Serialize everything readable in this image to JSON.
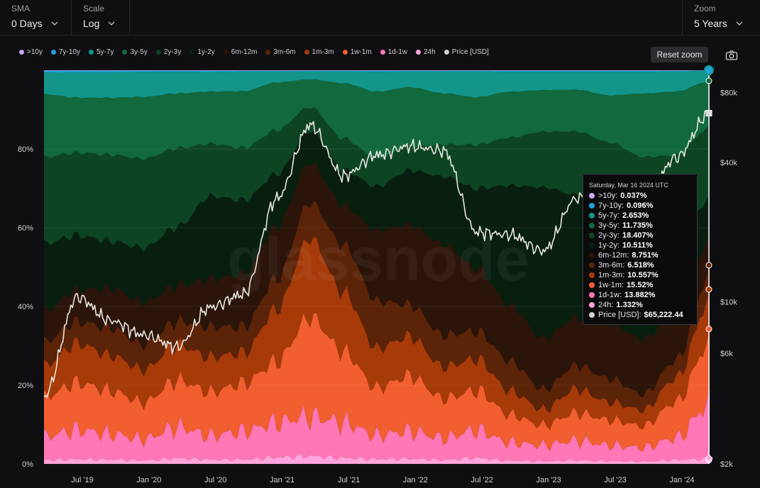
{
  "controls": {
    "sma": {
      "label": "SMA",
      "value": "0 Days"
    },
    "scale": {
      "label": "Scale",
      "value": "Log"
    },
    "zoom": {
      "label": "Zoom",
      "value": "5 Years"
    }
  },
  "reset_zoom_label": "Reset zoom",
  "watermark": "glassnode",
  "icons": {
    "camera": "camera-icon",
    "dropdown": "chevron-down-icon"
  },
  "legend": [
    {
      "label": ">10y",
      "color": "#c9a6f5"
    },
    {
      "label": "7y-10y",
      "color": "#1fa2dd"
    },
    {
      "label": "5y-7y",
      "color": "#13958a"
    },
    {
      "label": "3y-5y",
      "color": "#11693d"
    },
    {
      "label": "2y-3y",
      "color": "#0d4523"
    },
    {
      "label": "1y-2y",
      "color": "#081f10"
    },
    {
      "label": "6m-12m",
      "color": "#2b1409"
    },
    {
      "label": "3m-6m",
      "color": "#5b2308"
    },
    {
      "label": "1m-3m",
      "color": "#a63a08"
    },
    {
      "label": "1w-1m",
      "color": "#f15e2f"
    },
    {
      "label": "1d-1w",
      "color": "#ff77b7"
    },
    {
      "label": "24h",
      "color": "#ffa4dc"
    },
    {
      "label": "Price [USD]",
      "color": "#cfcfcf"
    }
  ],
  "tooltip": {
    "date": "Saturday, Mar 16 2024 UTC",
    "rows": [
      {
        "name": ">10y:",
        "value": "0.037%",
        "color": "#c9a6f5"
      },
      {
        "name": "7y-10y:",
        "value": "0.096%",
        "color": "#1fa2dd"
      },
      {
        "name": "5y-7y:",
        "value": "2.653%",
        "color": "#13958a"
      },
      {
        "name": "3y-5y:",
        "value": "11.735%",
        "color": "#11693d"
      },
      {
        "name": "2y-3y:",
        "value": "18.407%",
        "color": "#0d4523"
      },
      {
        "name": "1y-2y:",
        "value": "10.511%",
        "color": "#081f10"
      },
      {
        "name": "6m-12m:",
        "value": "8.751%",
        "color": "#2b1409"
      },
      {
        "name": "3m-6m:",
        "value": "6.518%",
        "color": "#5b2308"
      },
      {
        "name": "1m-3m:",
        "value": "10.557%",
        "color": "#a63a08"
      },
      {
        "name": "1w-1m:",
        "value": "15.52%",
        "color": "#f15e2f"
      },
      {
        "name": "1d-1w:",
        "value": "13.882%",
        "color": "#ff77b7"
      },
      {
        "name": "24h:",
        "value": "1.332%",
        "color": "#ffa4dc"
      },
      {
        "name": "Price [USD]:",
        "value": "$65,222.44",
        "color": "#cfcfcf"
      }
    ]
  },
  "chart_data": {
    "type": "area",
    "stacking": "percent",
    "grid": true,
    "legend_position": "top-left",
    "x_axis": {
      "ticks": [
        "Jul '19",
        "Jan '20",
        "Jul '20",
        "Jan '21",
        "Jul '21",
        "Jan '22",
        "Jul '22",
        "Jan '23",
        "Jul '23",
        "Jan '24"
      ]
    },
    "y_left": {
      "ticks": [
        "0%",
        "20%",
        "40%",
        "60%",
        "80%"
      ],
      "range": [
        0,
        100
      ],
      "unit": "%"
    },
    "y_right": {
      "ticks": [
        "$2k",
        "$6k",
        "$10k",
        "$40k",
        "$80k"
      ],
      "tick_values": [
        2000,
        6000,
        10000,
        40000,
        80000
      ],
      "range": [
        2000,
        100000
      ],
      "scale": "log"
    },
    "x": [
      "2019-03",
      "2019-06",
      "2019-09",
      "2019-12",
      "2020-03",
      "2020-06",
      "2020-09",
      "2020-12",
      "2021-03",
      "2021-06",
      "2021-09",
      "2021-12",
      "2022-03",
      "2022-06",
      "2022-09",
      "2022-12",
      "2023-03",
      "2023-06",
      "2023-09",
      "2023-12",
      "2024-03"
    ],
    "series": [
      {
        "name": "24h",
        "color": "#ffa4dc",
        "values": [
          1.0,
          1.2,
          1.1,
          0.9,
          1.4,
          1.0,
          1.0,
          1.5,
          2.0,
          1.5,
          1.2,
          1.3,
          1.0,
          1.5,
          0.8,
          0.7,
          0.9,
          0.7,
          0.6,
          1.0,
          1.3
        ]
      },
      {
        "name": "1d-1w",
        "color": "#ff77b7",
        "values": [
          6.0,
          7.5,
          6.5,
          5.5,
          8.0,
          5.5,
          6.5,
          8.0,
          10.0,
          9.0,
          6.0,
          7.0,
          5.5,
          7.0,
          4.5,
          4.0,
          5.0,
          4.0,
          3.5,
          5.5,
          13.9
        ]
      },
      {
        "name": "1w-1m",
        "color": "#f15e2f",
        "values": [
          10.0,
          12.0,
          11.0,
          9.5,
          12.0,
          10.0,
          11.0,
          14.0,
          25.0,
          18.0,
          12.0,
          14.0,
          10.0,
          10.0,
          7.0,
          5.0,
          7.0,
          6.5,
          5.5,
          9.0,
          15.5
        ]
      },
      {
        "name": "1m-3m",
        "color": "#a63a08",
        "values": [
          8.0,
          10.0,
          9.0,
          8.5,
          9.0,
          8.0,
          7.0,
          12.0,
          20.0,
          15.0,
          10.0,
          10.0,
          8.0,
          8.0,
          6.0,
          4.0,
          6.0,
          4.5,
          4.0,
          6.0,
          10.6
        ]
      },
      {
        "name": "3m-6m",
        "color": "#5b2308",
        "values": [
          6.0,
          5.5,
          7.0,
          6.5,
          6.0,
          7.0,
          6.0,
          7.0,
          9.0,
          12.0,
          12.0,
          8.0,
          8.0,
          7.0,
          7.5,
          5.0,
          6.0,
          6.0,
          4.0,
          4.5,
          6.5
        ]
      },
      {
        "name": "6m-12m",
        "color": "#2b1409",
        "values": [
          8.0,
          8.0,
          10.0,
          11.0,
          9.0,
          11.0,
          12.0,
          12.0,
          10.0,
          10.0,
          18.0,
          20.0,
          23.0,
          16.0,
          14.0,
          13.0,
          12.0,
          14.0,
          14.0,
          12.0,
          8.8
        ]
      },
      {
        "name": "1y-2y",
        "color": "#081f10",
        "values": [
          17.0,
          14.0,
          12.0,
          14.0,
          15.0,
          19.0,
          17.0,
          12.0,
          8.0,
          9.0,
          11.0,
          14.0,
          17.0,
          20.0,
          30.0,
          38.0,
          31.0,
          28.0,
          24.0,
          18.0,
          10.5
        ]
      },
      {
        "name": "2y-3y",
        "color": "#0d4523",
        "values": [
          22.0,
          21.0,
          22.0,
          23.0,
          20.0,
          12.0,
          12.0,
          10.0,
          6.0,
          8.0,
          7.0,
          6.0,
          8.0,
          11.0,
          12.0,
          14.0,
          16.0,
          18.0,
          22.0,
          21.0,
          18.4
        ]
      },
      {
        "name": "3y-5y",
        "color": "#11693d",
        "values": [
          16.0,
          14.0,
          14.5,
          16.0,
          14.0,
          12.0,
          13.0,
          11.0,
          7.0,
          14.0,
          17.0,
          15.0,
          13.0,
          12.0,
          11.5,
          10.5,
          10.5,
          12.0,
          16.0,
          16.0,
          11.7
        ]
      },
      {
        "name": "5y-7y",
        "color": "#13958a",
        "values": [
          5.5,
          6.5,
          6.5,
          6.5,
          5.5,
          4.5,
          4.5,
          2.5,
          2.0,
          3.0,
          5.0,
          4.0,
          5.5,
          6.5,
          5.0,
          4.6,
          4.5,
          6.0,
          5.5,
          5.0,
          2.7
        ]
      },
      {
        "name": "7y-10y",
        "color": "#1fa2dd",
        "values": [
          0.5,
          0.4,
          0.4,
          0.3,
          0.3,
          0.3,
          0.2,
          0.2,
          0.2,
          0.2,
          0.3,
          0.2,
          0.2,
          0.2,
          0.3,
          0.3,
          0.3,
          0.3,
          0.3,
          0.2,
          0.1
        ]
      },
      {
        "name": ">10y",
        "color": "#c9a6f5",
        "values": [
          0.1,
          0.1,
          0.1,
          0.1,
          0.1,
          0.1,
          0.1,
          0.1,
          0.1,
          0.1,
          0.1,
          0.1,
          0.1,
          0.1,
          0.1,
          0.1,
          0.1,
          0.1,
          0.1,
          0.1,
          0.04
        ]
      },
      {
        "name": "Price [USD]",
        "color": "#e8e6e1",
        "axis": "right",
        "values": [
          3900,
          10500,
          8300,
          7200,
          6400,
          9500,
          10800,
          28000,
          58000,
          35000,
          43000,
          47000,
          45000,
          20000,
          19500,
          16600,
          28000,
          30400,
          27000,
          42000,
          65222
        ]
      }
    ]
  }
}
